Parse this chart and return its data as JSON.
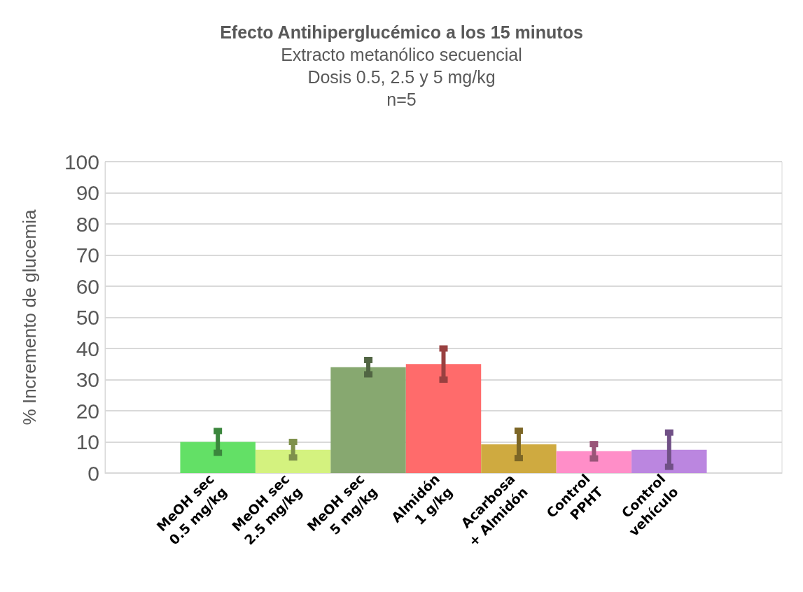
{
  "chart_data": {
    "type": "bar",
    "title": "Efecto Antihiperglucémico a los 15 minutos",
    "subtitle": "Extracto metanólico secuencial\nDosis 0.5, 2.5 y 5 mg/kg\nn=5",
    "ylabel": "% Incremento de glucemia",
    "categories": [
      null,
      "MeOH sec\n0.5 mg/kg",
      "MeOH sec\n2.5 mg/kg",
      "MeOH sec\n5 mg/kg",
      "Almidón\n1 g/kg",
      "Acarbosa\n+ Almidón",
      "Control\nPPHT",
      "Control\nvehículo",
      null
    ],
    "values": [
      null,
      10,
      7.5,
      34,
      35,
      9.2,
      7,
      7.5,
      null
    ],
    "errors": [
      null,
      3.5,
      2.5,
      2.3,
      5,
      4.4,
      2.3,
      5.5,
      null
    ],
    "colors": [
      "#ffffff",
      "#63e066",
      "#d4f27f",
      "#87a870",
      "#ff6b6b",
      "#cfaa40",
      "#ff8ec8",
      "#bb86e0",
      "#ffffff"
    ],
    "ylim": [
      0,
      100
    ],
    "yticks": [
      0,
      10,
      20,
      30,
      40,
      50,
      60,
      70,
      80,
      90,
      100
    ],
    "grid": "y"
  }
}
